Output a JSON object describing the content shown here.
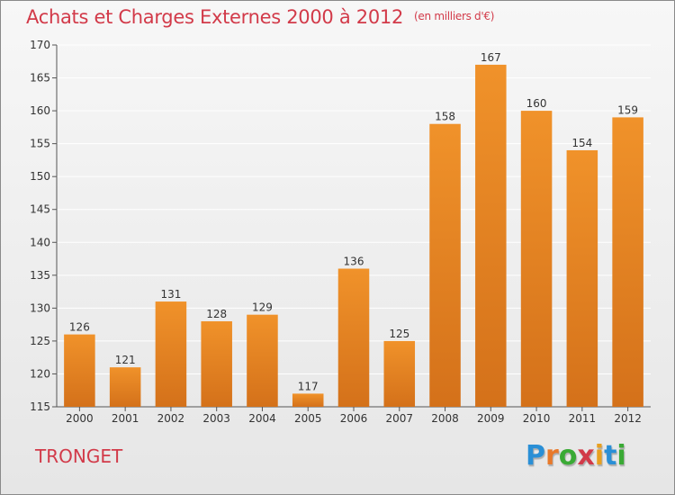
{
  "title": "Achats et Charges Externes 2000 à 2012",
  "unit": "(en milliers d'€)",
  "commune": "TRONGET",
  "logo": {
    "letters": [
      "P",
      "r",
      "o",
      "x",
      "i",
      "t",
      "i"
    ],
    "colors": [
      "#2a8fd6",
      "#e8792a",
      "#3aaa35",
      "#d23a49",
      "#e8a020",
      "#2a8fd6",
      "#3aaa35"
    ]
  },
  "colors": {
    "bar": "#f0922a",
    "bar_dark": "#d4711a",
    "title": "#d23a49"
  },
  "chart_data": {
    "type": "bar",
    "categories": [
      "2000",
      "2001",
      "2002",
      "2003",
      "2004",
      "2005",
      "2006",
      "2007",
      "2008",
      "2009",
      "2010",
      "2011",
      "2012"
    ],
    "values": [
      126,
      121,
      131,
      128,
      129,
      117,
      136,
      125,
      158,
      167,
      160,
      154,
      159
    ],
    "title": "Achats et Charges Externes 2000 à 2012",
    "xlabel": "",
    "ylabel": "",
    "ylim": [
      115,
      170
    ],
    "yticks": [
      115,
      120,
      125,
      130,
      135,
      140,
      145,
      150,
      155,
      160,
      165,
      170
    ],
    "grid": true,
    "data_labels": true
  }
}
